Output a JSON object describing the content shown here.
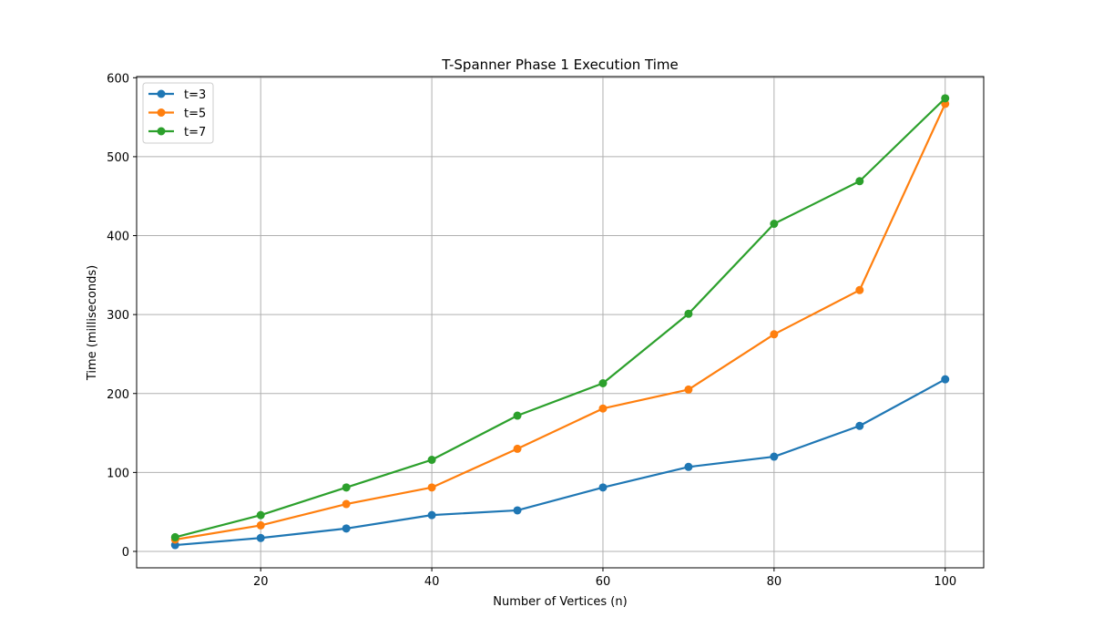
{
  "chart_data": {
    "type": "line",
    "title": "T-Spanner Phase 1 Execution Time",
    "xlabel": "Number of Vertices (n)",
    "ylabel": "Time (milliseconds)",
    "x": [
      10,
      20,
      30,
      40,
      50,
      60,
      70,
      80,
      90,
      100
    ],
    "xlim": [
      5.5,
      104.5
    ],
    "ylim": [
      -20.8,
      601.5
    ],
    "xticks": [
      20,
      40,
      60,
      80,
      100
    ],
    "yticks": [
      0,
      100,
      200,
      300,
      400,
      500,
      600
    ],
    "grid": true,
    "legend_position": "upper left",
    "marker": "circle",
    "series": [
      {
        "name": "t=3",
        "color": "#1f77b4",
        "values": [
          8,
          17,
          29,
          46,
          52,
          81,
          107,
          120,
          159,
          218
        ]
      },
      {
        "name": "t=5",
        "color": "#ff7f0e",
        "values": [
          15,
          33,
          60,
          81,
          130,
          181,
          205,
          275,
          331,
          567
        ]
      },
      {
        "name": "t=7",
        "color": "#2ca02c",
        "values": [
          18,
          46,
          81,
          116,
          172,
          213,
          301,
          415,
          469,
          574
        ]
      }
    ]
  }
}
